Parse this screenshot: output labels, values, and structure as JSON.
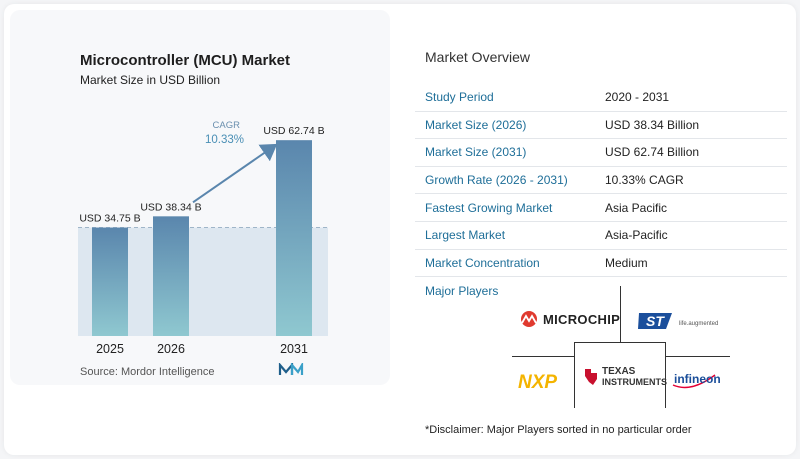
{
  "chart_data": {
    "type": "bar",
    "title": "Microcontroller (MCU) Market",
    "subtitle": "Market Size in USD Billion",
    "categories": [
      "2025",
      "2026",
      "2031"
    ],
    "values": [
      34.75,
      38.34,
      62.74
    ],
    "value_labels": [
      "USD 34.75 B",
      "USD 38.34 B",
      "USD 62.74 B"
    ],
    "cagr_label": "CAGR",
    "cagr_value": "10.33%",
    "ylim": [
      0,
      66
    ],
    "source": "Source:  Mordor Intelligence",
    "colors": {
      "bar_top": "#5a86ad",
      "bar_bottom": "#8fc8d0",
      "band": "#dde7f0",
      "arrow": "#5a86ad",
      "cagr": "#4a8fb5"
    }
  },
  "overview": {
    "title": "Market Overview",
    "rows": [
      {
        "label": "Study Period",
        "value": "2020 - 2031"
      },
      {
        "label": "Market Size (2026)",
        "value": "USD 38.34 Billion"
      },
      {
        "label": "Market Size (2031)",
        "value": "USD 62.74 Billion"
      },
      {
        "label": "Growth Rate (2026 - 2031)",
        "value": "10.33% CAGR"
      },
      {
        "label": "Fastest Growing Market",
        "value": "Asia Pacific"
      },
      {
        "label": "Largest Market",
        "value": "Asia-Pacific"
      },
      {
        "label": "Market Concentration",
        "value": "Medium"
      }
    ]
  },
  "players": {
    "title": "Major Players",
    "logos": {
      "microchip": "MICROCHIP",
      "st_tagline": "life.augmented",
      "nxp": "NXP",
      "ti_line1": "TEXAS",
      "ti_line2": "INSTRUMENTS",
      "infineon": "infineon"
    }
  },
  "disclaimer": "*Disclaimer: Major Players sorted in no particular order"
}
